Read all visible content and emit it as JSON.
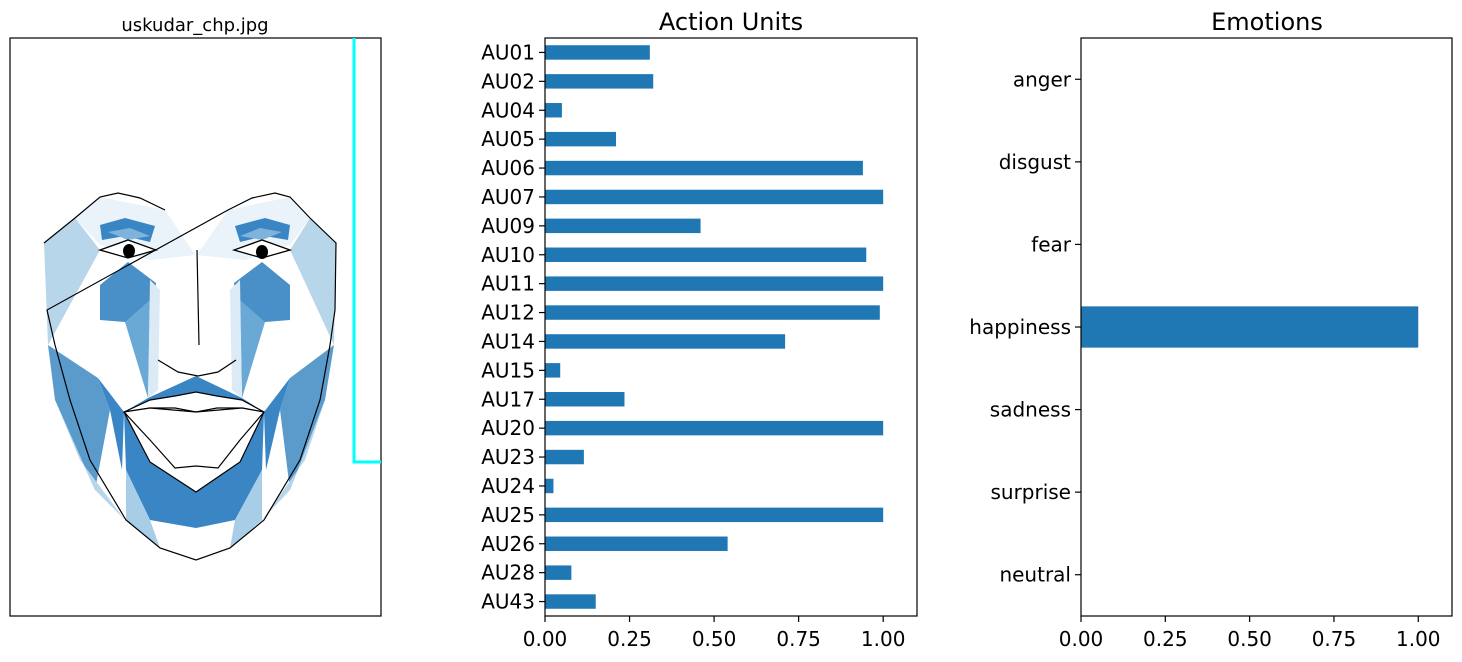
{
  "face_panel": {
    "title": "uskudar_chp.jpg",
    "accent_color": "#00ffff"
  },
  "chart_data": [
    {
      "type": "bar",
      "orientation": "horizontal",
      "title": "Action Units",
      "categories": [
        "AU01",
        "AU02",
        "AU04",
        "AU05",
        "AU06",
        "AU07",
        "AU09",
        "AU10",
        "AU11",
        "AU12",
        "AU14",
        "AU15",
        "AU17",
        "AU20",
        "AU23",
        "AU24",
        "AU25",
        "AU26",
        "AU28",
        "AU43"
      ],
      "values": [
        0.31,
        0.32,
        0.05,
        0.21,
        0.94,
        1.0,
        0.46,
        0.95,
        1.0,
        0.99,
        0.71,
        0.045,
        0.235,
        1.0,
        0.115,
        0.025,
        1.0,
        0.54,
        0.078,
        0.15
      ],
      "xticks": [
        "0.00",
        "0.25",
        "0.50",
        "0.75",
        "1.00"
      ],
      "xlim": [
        0,
        1.1
      ],
      "color": "#1f77b4"
    },
    {
      "type": "bar",
      "orientation": "horizontal",
      "title": "Emotions",
      "categories": [
        "anger",
        "disgust",
        "fear",
        "happiness",
        "sadness",
        "surprise",
        "neutral"
      ],
      "values": [
        0.0,
        0.0,
        0.0,
        1.0,
        0.0,
        0.0,
        0.0
      ],
      "xticks": [
        "0.00",
        "0.25",
        "0.50",
        "0.75",
        "1.00"
      ],
      "xlim": [
        0,
        1.1
      ],
      "color": "#1f77b4"
    }
  ]
}
